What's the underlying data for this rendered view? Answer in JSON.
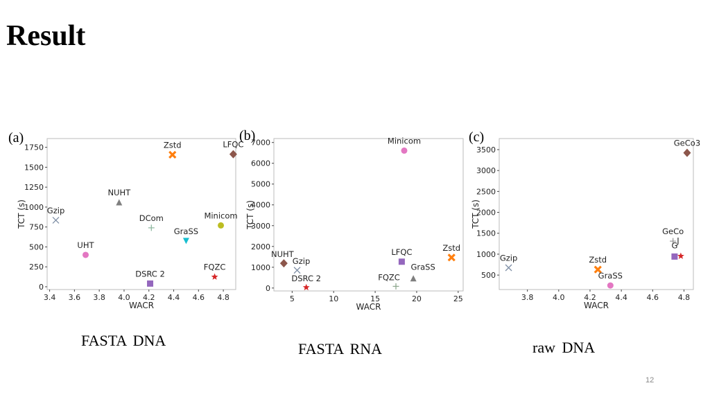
{
  "slide": {
    "title": "Result",
    "captions": [
      "FASTA  DNA",
      "FASTA  RNA",
      "raw  DNA"
    ],
    "page_number": "12"
  },
  "chart_data": [
    {
      "type": "scatter",
      "panel": "(a)",
      "xlabel": "WACR",
      "ylabel": "TCT (s)",
      "xlim": [
        3.38,
        4.9
      ],
      "ylim": [
        -35,
        1860
      ],
      "xticks": [
        3.4,
        3.6,
        3.8,
        4.0,
        4.2,
        4.4,
        4.6,
        4.8
      ],
      "xtick_labels": [
        "3.4",
        "3.6",
        "3.8",
        "4.0",
        "4.2",
        "4.4",
        "4.6",
        "4.8"
      ],
      "yticks": [
        0,
        250,
        500,
        750,
        1000,
        1250,
        1500,
        1750
      ],
      "ytick_labels": [
        "0",
        "250",
        "500",
        "750",
        "1000",
        "1250",
        "1500",
        "1750"
      ],
      "grid": false,
      "points": [
        {
          "name": "Gzip",
          "x": 3.45,
          "y": 835,
          "marker": "x",
          "color": "#7f8fa6"
        },
        {
          "name": "UHT",
          "x": 3.69,
          "y": 400,
          "marker": "circle",
          "color": "#e377c2"
        },
        {
          "name": "NUHT",
          "x": 3.96,
          "y": 1060,
          "marker": "triangle-up",
          "color": "#7f7f7f"
        },
        {
          "name": "DCom",
          "x": 4.22,
          "y": 740,
          "marker": "plus",
          "color": "#8fb8a0"
        },
        {
          "name": "DSRC 2",
          "x": 4.21,
          "y": 40,
          "marker": "square",
          "color": "#9467bd"
        },
        {
          "name": "Zstd",
          "x": 4.39,
          "y": 1657,
          "marker": "x-filled",
          "color": "#ff7f0e"
        },
        {
          "name": "GraSS",
          "x": 4.5,
          "y": 575,
          "marker": "triangle-down",
          "color": "#17becf"
        },
        {
          "name": "Minicom",
          "x": 4.78,
          "y": 770,
          "marker": "circle",
          "color": "#bcbd22"
        },
        {
          "name": "FQZC",
          "x": 4.73,
          "y": 124,
          "marker": "star",
          "color": "#d62728"
        },
        {
          "name": "LFQC",
          "x": 4.88,
          "y": 1663,
          "marker": "diamond",
          "color": "#8c564b"
        }
      ]
    },
    {
      "type": "scatter",
      "panel": "(b)",
      "xlabel": "WACR",
      "ylabel": "TCT (s)",
      "xlim": [
        2.8,
        25.6
      ],
      "ylim": [
        -140,
        7190
      ],
      "xticks": [
        5,
        10,
        15,
        20,
        25
      ],
      "xtick_labels": [
        "5",
        "10",
        "15",
        "20",
        "25"
      ],
      "yticks": [
        0,
        1000,
        2000,
        3000,
        4000,
        5000,
        6000,
        7000
      ],
      "ytick_labels": [
        "0",
        "1000",
        "2000",
        "3000",
        "4000",
        "5000",
        "6000",
        "7000"
      ],
      "grid": false,
      "points": [
        {
          "name": "NUHT",
          "x": 4.0,
          "y": 1190,
          "marker": "diamond",
          "color": "#8c564b"
        },
        {
          "name": "Gzip",
          "x": 5.6,
          "y": 855,
          "marker": "x",
          "color": "#7f8fa6"
        },
        {
          "name": "DSRC 2",
          "x": 6.7,
          "y": 30,
          "marker": "star",
          "color": "#d62728"
        },
        {
          "name": "LFQC",
          "x": 18.2,
          "y": 1267,
          "marker": "square",
          "color": "#9467bd"
        },
        {
          "name": "FQZC",
          "x": 17.5,
          "y": 80,
          "marker": "plus",
          "color": "#8fa88f"
        },
        {
          "name": "GraSS",
          "x": 19.6,
          "y": 470,
          "marker": "triangle-up",
          "color": "#7f7f7f"
        },
        {
          "name": "Minicom",
          "x": 18.5,
          "y": 6610,
          "marker": "circle",
          "color": "#e377c2"
        },
        {
          "name": "Zstd",
          "x": 24.2,
          "y": 1467,
          "marker": "x-filled",
          "color": "#ff7f0e"
        }
      ]
    },
    {
      "type": "scatter",
      "panel": "(c)",
      "xlabel": "WACR",
      "ylabel": "TCT (s)",
      "xlim": [
        3.62,
        4.86
      ],
      "ylim": [
        154,
        3765
      ],
      "xticks": [
        3.8,
        4.0,
        4.2,
        4.4,
        4.6,
        4.8
      ],
      "xtick_labels": [
        "3.8",
        "4.0",
        "4.2",
        "4.4",
        "4.6",
        "4.8"
      ],
      "yticks": [
        500,
        1000,
        1500,
        2000,
        2500,
        3000,
        3500
      ],
      "ytick_labels": [
        "500",
        "1000",
        "1500",
        "2000",
        "2500",
        "3000",
        "3500"
      ],
      "grid": false,
      "points": [
        {
          "name": "Gzip",
          "x": 3.68,
          "y": 676,
          "marker": "x",
          "color": "#7f8fa6"
        },
        {
          "name": "Zstd",
          "x": 4.25,
          "y": 632,
          "marker": "x-filled",
          "color": "#ff7f0e"
        },
        {
          "name": "GraSS",
          "x": 4.33,
          "y": 252,
          "marker": "circle",
          "color": "#e377c2"
        },
        {
          "name": "GeCo",
          "x": 4.73,
          "y": 1311,
          "marker": "plus",
          "color": "#999999"
        },
        {
          "name": "G",
          "x": 4.74,
          "y": 943,
          "marker": "square",
          "color": "#9467bd"
        },
        {
          "name": "J",
          "x": 4.78,
          "y": 954,
          "marker": "star",
          "color": "#d62728"
        },
        {
          "name": "GeCo3",
          "x": 4.82,
          "y": 3423,
          "marker": "diamond",
          "color": "#8c564b"
        }
      ]
    }
  ]
}
